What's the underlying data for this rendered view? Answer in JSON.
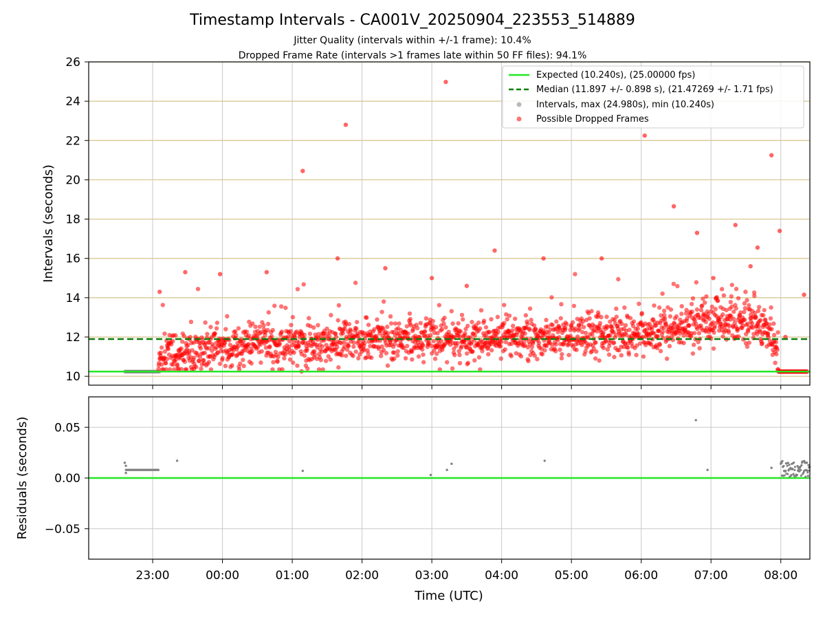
{
  "figure": {
    "title": "Timestamp Intervals - CA001V_20250904_223553_514889",
    "subtitle_1": "Jitter Quality (intervals within +/-1 frame): 10.4%",
    "subtitle_2": "Dropped Frame Rate (intervals >1 frames late within 50 FF files): 94.1%"
  },
  "colors": {
    "expected": "#22e822",
    "median": "#0a7d0a",
    "dropped": "#ff0000",
    "intervals": "#808080",
    "grid_top": "#d4c38a",
    "grid_bottom": "#c8c8c8"
  },
  "chart_data": [
    {
      "type": "scatter",
      "panel": "top",
      "ylabel": "Intervals (seconds)",
      "ylim": [
        9.55,
        26
      ],
      "yticks": [
        10,
        12,
        14,
        16,
        18,
        20,
        22,
        24,
        26
      ],
      "ytick_labels": [
        "10",
        "12",
        "14",
        "16",
        "18",
        "20",
        "22",
        "24",
        "26"
      ],
      "grid": true,
      "legend_placement": "upper right",
      "legend": [
        {
          "label": "Expected (10.240s), (25.00000 fps)",
          "marker": "line",
          "color": "#22e822"
        },
        {
          "label": "Median (11.897 +/- 0.898 s), (21.47269 +/- 1.71 fps)",
          "marker": "dashed",
          "color": "#0a7d0a"
        },
        {
          "label": "Intervals, max (24.980s), min (10.240s)",
          "marker": "dot",
          "color": "#808080"
        },
        {
          "label": "Possible Dropped Frames",
          "marker": "dot",
          "color": "#ff0000"
        }
      ],
      "reference_lines": {
        "expected": 10.24,
        "median": 11.897,
        "median_std": 0.898
      },
      "intervals_summary": {
        "max": 24.98,
        "min": 10.24,
        "x_start": "22:36",
        "x_end": "23:06"
      },
      "dropped_band": [
        {
          "x": "23:05",
          "mean": 11.0
        },
        {
          "x": "23:30",
          "mean": 11.2
        },
        {
          "x": "00:00",
          "mean": 11.4
        },
        {
          "x": "00:30",
          "mean": 11.6
        },
        {
          "x": "01:00",
          "mean": 11.6
        },
        {
          "x": "01:30",
          "mean": 11.7
        },
        {
          "x": "02:00",
          "mean": 11.8
        },
        {
          "x": "03:00",
          "mean": 11.9
        },
        {
          "x": "04:00",
          "mean": 12.0
        },
        {
          "x": "05:00",
          "mean": 12.0
        },
        {
          "x": "06:00",
          "mean": 12.1
        },
        {
          "x": "06:30",
          "mean": 12.5
        },
        {
          "x": "07:00",
          "mean": 12.9
        },
        {
          "x": "07:30",
          "mean": 12.8
        },
        {
          "x": "07:50",
          "mean": 12.4
        },
        {
          "x": "07:58",
          "mean": 10.9
        }
      ],
      "dropped_outliers": [
        {
          "x": "23:06",
          "y": 14.3
        },
        {
          "x": "23:28",
          "y": 15.3
        },
        {
          "x": "23:58",
          "y": 15.2
        },
        {
          "x": "00:38",
          "y": 15.3
        },
        {
          "x": "01:08",
          "y": 10.25
        },
        {
          "x": "01:09",
          "y": 20.45
        },
        {
          "x": "01:39",
          "y": 16.0
        },
        {
          "x": "01:46",
          "y": 22.8
        },
        {
          "x": "02:20",
          "y": 15.5
        },
        {
          "x": "03:00",
          "y": 15.0
        },
        {
          "x": "03:12",
          "y": 24.98
        },
        {
          "x": "03:30",
          "y": 14.6
        },
        {
          "x": "03:54",
          "y": 16.4
        },
        {
          "x": "04:36",
          "y": 16.0
        },
        {
          "x": "05:26",
          "y": 16.0
        },
        {
          "x": "06:03",
          "y": 22.25
        },
        {
          "x": "06:28",
          "y": 18.65
        },
        {
          "x": "06:48",
          "y": 17.3
        },
        {
          "x": "07:02",
          "y": 15.0
        },
        {
          "x": "07:21",
          "y": 17.7
        },
        {
          "x": "07:34",
          "y": 15.6
        },
        {
          "x": "07:40",
          "y": 16.55
        },
        {
          "x": "07:52",
          "y": 21.25
        },
        {
          "x": "07:59",
          "y": 17.4
        },
        {
          "x": "08:04",
          "y": 12.0
        },
        {
          "x": "08:20",
          "y": 14.15
        }
      ],
      "dropped_tail": {
        "x_start": "07:58",
        "x_end": "08:23",
        "y": 10.24
      }
    },
    {
      "type": "scatter",
      "panel": "bottom",
      "xlabel": "Time (UTC)",
      "ylabel": "Residuals (seconds)",
      "ylim": [
        -0.08,
        0.08
      ],
      "yticks": [
        -0.05,
        0.0,
        0.05
      ],
      "ytick_labels": [
        "−0.05",
        "0.00",
        "0.05"
      ],
      "grid": true,
      "zero_line": 0.0,
      "x_range": [
        "22:05",
        "08:25"
      ],
      "xticks": [
        "23:00",
        "00:00",
        "01:00",
        "02:00",
        "03:00",
        "04:00",
        "05:00",
        "06:00",
        "07:00",
        "08:00"
      ],
      "xtick_labels": [
        "23:00",
        "00:00",
        "01:00",
        "02:00",
        "03:00",
        "04:00",
        "05:00",
        "06:00",
        "07:00",
        "08:00"
      ],
      "residual_points": [
        {
          "x": "22:36",
          "y": 0.015
        },
        {
          "x": "22:37",
          "y": 0.012
        },
        {
          "x": "22:37",
          "y": 0.005
        },
        {
          "x": "23:21",
          "y": 0.017
        },
        {
          "x": "01:09",
          "y": 0.007
        },
        {
          "x": "02:59",
          "y": 0.003
        },
        {
          "x": "03:13",
          "y": 0.008
        },
        {
          "x": "03:17",
          "y": 0.014
        },
        {
          "x": "04:37",
          "y": 0.017
        },
        {
          "x": "06:47",
          "y": 0.057
        },
        {
          "x": "06:57",
          "y": 0.008
        },
        {
          "x": "07:52",
          "y": 0.01
        }
      ],
      "residual_cluster_start": {
        "x_start": "22:37",
        "x_end": "23:05",
        "y": 0.008
      },
      "residual_cluster_end": {
        "x_start": "08:00",
        "x_end": "08:25",
        "y_min": 0.001,
        "y_max": 0.017
      }
    }
  ]
}
